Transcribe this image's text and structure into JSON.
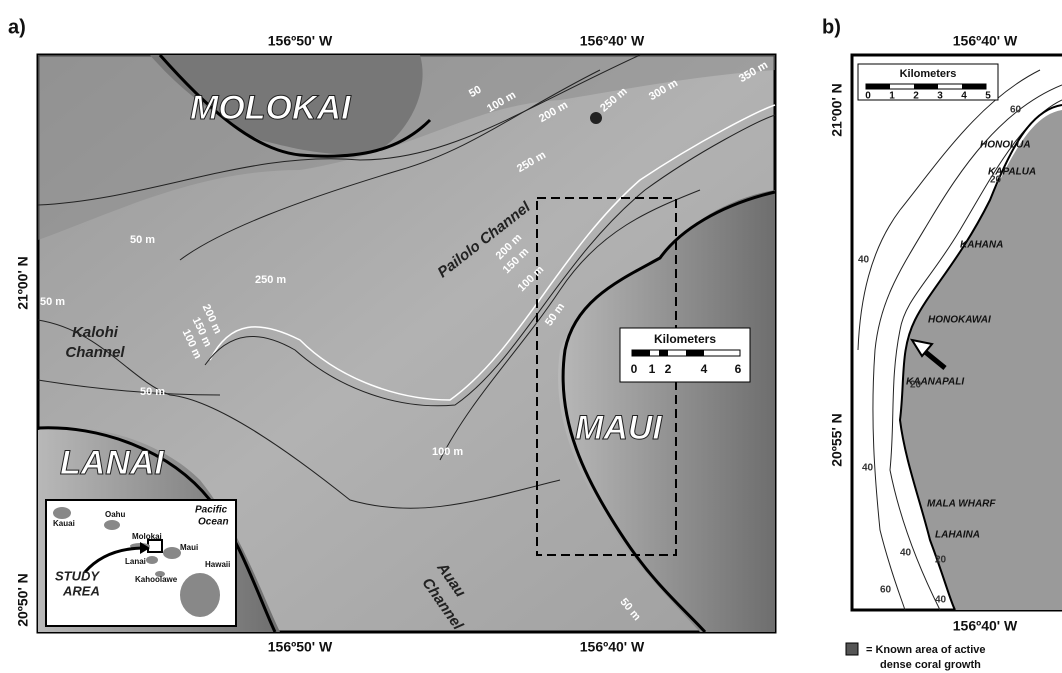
{
  "panel_a": {
    "label": "a)",
    "lon_top": [
      "156º50' W",
      "156º40' W"
    ],
    "lon_bottom": [
      "156º50' W",
      "156º40' W"
    ],
    "lat": [
      "21º00' N",
      "20º50' N"
    ],
    "places": [
      "MOLOKAI",
      "LANAI",
      "MAUI"
    ],
    "features": [
      "Pailolo Channel",
      "Kalohi",
      "Channel",
      "Auau",
      "Channel"
    ],
    "contours": [
      "50",
      "100 m",
      "200 m",
      "250 m",
      "300 m",
      "350 m",
      "250 m",
      "50 m",
      "50 m",
      "250 m",
      "200 m",
      "150 m",
      "100 m",
      "200 m",
      "150 m",
      "100 m",
      "50 m",
      "50 m",
      "100 m",
      "50 m"
    ],
    "scale": {
      "title": "Kilometers",
      "ticks": [
        "0",
        "1",
        "2",
        "4",
        "6"
      ]
    },
    "inset": {
      "islands": [
        "Kauai",
        "Oahu",
        "Molokai",
        "Maui",
        "Lanai",
        "Kahoolawe",
        "Hawaii"
      ],
      "ocean": [
        "Pacific",
        "Ocean"
      ],
      "study": [
        "STUDY",
        "AREA"
      ]
    }
  },
  "panel_b": {
    "label": "b)",
    "lon_top": "156º40' W",
    "lon_bottom": "156º40' W",
    "lat": [
      "21º00' N",
      "20º55' N"
    ],
    "places": [
      "HONOLUA",
      "KAPALUA",
      "KAHANA",
      "HONOKAWAI",
      "KAANAPALI",
      "MALA WHARF",
      "LAHAINA"
    ],
    "contours": [
      "60",
      "40",
      "20",
      "20",
      "40",
      "60",
      "40",
      "20",
      "40"
    ],
    "scale": {
      "title": "Kilometers",
      "ticks": [
        "0",
        "1",
        "2",
        "3",
        "4",
        "5"
      ]
    }
  },
  "legend": [
    "= Known area of active",
    "dense coral growth"
  ]
}
